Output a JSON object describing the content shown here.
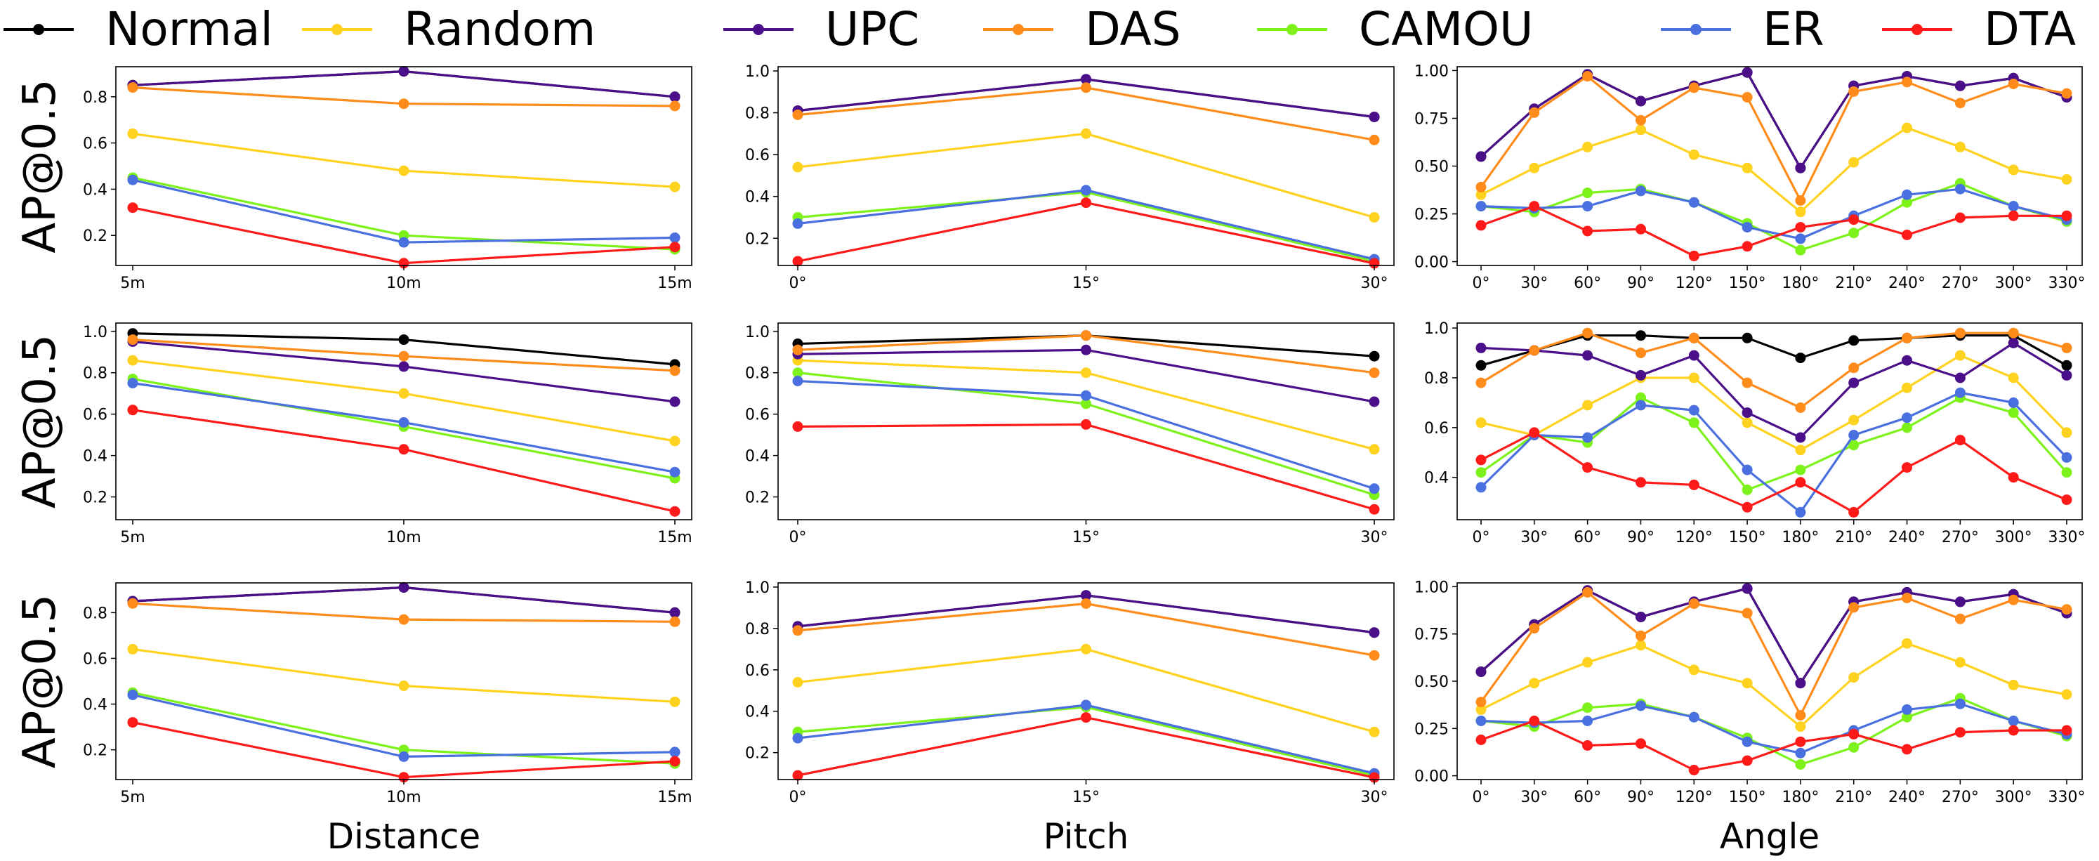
{
  "legend": [
    {
      "name": "Normal",
      "color": "#000000"
    },
    {
      "name": "Random",
      "color": "#FFD21F"
    },
    {
      "name": "UPC",
      "color": "#4B0F8A"
    },
    {
      "name": "DAS",
      "color": "#FF8C1A"
    },
    {
      "name": "CAMOU",
      "color": "#7CF21A"
    },
    {
      "name": "ER",
      "color": "#4A70E0"
    },
    {
      "name": "DTA",
      "color": "#FF1A1A"
    }
  ],
  "row_labels": [
    "AP@0.5",
    "AP@0.5",
    "AP@0.5"
  ],
  "column_labels": [
    "Distance",
    "Pitch",
    "Angle"
  ],
  "chart_data": [
    {
      "type": "line",
      "row": 0,
      "col": 0,
      "categories": [
        "5m",
        "10m",
        "15m"
      ],
      "ylim": [
        0.07,
        0.93
      ],
      "yticks": [
        "0.2",
        "0.4",
        "0.6",
        "0.8"
      ],
      "series": [
        {
          "name": "Normal",
          "values": [
            0.85,
            0.91,
            0.8
          ]
        },
        {
          "name": "UPC",
          "values": [
            0.85,
            0.91,
            0.8
          ]
        },
        {
          "name": "DAS",
          "values": [
            0.84,
            0.77,
            0.76
          ]
        },
        {
          "name": "Random",
          "values": [
            0.64,
            0.48,
            0.41
          ]
        },
        {
          "name": "CAMOU",
          "values": [
            0.45,
            0.2,
            0.14
          ]
        },
        {
          "name": "ER",
          "values": [
            0.44,
            0.17,
            0.19
          ]
        },
        {
          "name": "DTA",
          "values": [
            0.32,
            0.08,
            0.15
          ]
        }
      ]
    },
    {
      "type": "line",
      "row": 0,
      "col": 1,
      "categories": [
        "0°",
        "15°",
        "30°"
      ],
      "ylim": [
        0.07,
        1.02
      ],
      "yticks": [
        "0.2",
        "0.4",
        "0.6",
        "0.8",
        "1.0"
      ],
      "series": [
        {
          "name": "Normal",
          "values": [
            0.81,
            0.96,
            0.78
          ]
        },
        {
          "name": "UPC",
          "values": [
            0.81,
            0.96,
            0.78
          ]
        },
        {
          "name": "DAS",
          "values": [
            0.79,
            0.92,
            0.67
          ]
        },
        {
          "name": "Random",
          "values": [
            0.54,
            0.7,
            0.3
          ]
        },
        {
          "name": "CAMOU",
          "values": [
            0.3,
            0.42,
            0.09
          ]
        },
        {
          "name": "ER",
          "values": [
            0.27,
            0.43,
            0.1
          ]
        },
        {
          "name": "DTA",
          "values": [
            0.09,
            0.37,
            0.08
          ]
        }
      ]
    },
    {
      "type": "line",
      "row": 0,
      "col": 2,
      "categories": [
        "0°",
        "30°",
        "60°",
        "90°",
        "120°",
        "150°",
        "180°",
        "210°",
        "240°",
        "270°",
        "300°",
        "330°"
      ],
      "ylim": [
        -0.02,
        1.02
      ],
      "yticks": [
        "0.00",
        "0.25",
        "0.50",
        "0.75",
        "1.00"
      ],
      "series": [
        {
          "name": "Normal",
          "values": [
            0.55,
            0.8,
            0.98,
            0.84,
            0.92,
            0.99,
            0.49,
            0.92,
            0.97,
            0.92,
            0.96,
            0.86
          ]
        },
        {
          "name": "UPC",
          "values": [
            0.55,
            0.8,
            0.98,
            0.84,
            0.92,
            0.99,
            0.49,
            0.92,
            0.97,
            0.92,
            0.96,
            0.86
          ]
        },
        {
          "name": "DAS",
          "values": [
            0.39,
            0.78,
            0.97,
            0.74,
            0.91,
            0.86,
            0.32,
            0.89,
            0.94,
            0.83,
            0.93,
            0.88
          ]
        },
        {
          "name": "Random",
          "values": [
            0.35,
            0.49,
            0.6,
            0.69,
            0.56,
            0.49,
            0.26,
            0.52,
            0.7,
            0.6,
            0.48,
            0.43
          ]
        },
        {
          "name": "CAMOU",
          "values": [
            0.29,
            0.26,
            0.36,
            0.38,
            0.31,
            0.2,
            0.06,
            0.15,
            0.31,
            0.41,
            0.29,
            0.21
          ]
        },
        {
          "name": "ER",
          "values": [
            0.29,
            0.28,
            0.29,
            0.37,
            0.31,
            0.18,
            0.12,
            0.24,
            0.35,
            0.38,
            0.29,
            0.22
          ]
        },
        {
          "name": "DTA",
          "values": [
            0.19,
            0.29,
            0.16,
            0.17,
            0.03,
            0.08,
            0.18,
            0.22,
            0.14,
            0.23,
            0.24,
            0.24
          ]
        }
      ]
    },
    {
      "type": "line",
      "row": 1,
      "col": 0,
      "categories": [
        "5m",
        "10m",
        "15m"
      ],
      "ylim": [
        0.09,
        1.04
      ],
      "yticks": [
        "0.2",
        "0.4",
        "0.6",
        "0.8",
        "1.0"
      ],
      "series": [
        {
          "name": "Normal",
          "values": [
            0.99,
            0.96,
            0.84
          ]
        },
        {
          "name": "DAS",
          "values": [
            0.96,
            0.88,
            0.81
          ]
        },
        {
          "name": "UPC",
          "values": [
            0.95,
            0.83,
            0.66
          ]
        },
        {
          "name": "Random",
          "values": [
            0.86,
            0.7,
            0.47
          ]
        },
        {
          "name": "CAMOU",
          "values": [
            0.77,
            0.54,
            0.29
          ]
        },
        {
          "name": "ER",
          "values": [
            0.75,
            0.56,
            0.32
          ]
        },
        {
          "name": "DTA",
          "values": [
            0.62,
            0.43,
            0.13
          ]
        }
      ]
    },
    {
      "type": "line",
      "row": 1,
      "col": 1,
      "categories": [
        "0°",
        "15°",
        "30°"
      ],
      "ylim": [
        0.09,
        1.04
      ],
      "yticks": [
        "0.2",
        "0.4",
        "0.6",
        "0.8",
        "1.0"
      ],
      "series": [
        {
          "name": "Normal",
          "values": [
            0.94,
            0.98,
            0.88
          ]
        },
        {
          "name": "DAS",
          "values": [
            0.91,
            0.98,
            0.8
          ]
        },
        {
          "name": "UPC",
          "values": [
            0.89,
            0.91,
            0.66
          ]
        },
        {
          "name": "Random",
          "values": [
            0.86,
            0.8,
            0.43
          ]
        },
        {
          "name": "CAMOU",
          "values": [
            0.8,
            0.65,
            0.21
          ]
        },
        {
          "name": "ER",
          "values": [
            0.76,
            0.69,
            0.24
          ]
        },
        {
          "name": "DTA",
          "values": [
            0.54,
            0.55,
            0.14
          ]
        }
      ]
    },
    {
      "type": "line",
      "row": 1,
      "col": 2,
      "categories": [
        "0°",
        "30°",
        "60°",
        "90°",
        "120°",
        "150°",
        "180°",
        "210°",
        "240°",
        "270°",
        "300°",
        "330°"
      ],
      "ylim": [
        0.23,
        1.02
      ],
      "yticks": [
        "0.4",
        "0.6",
        "0.8",
        "1.0"
      ],
      "series": [
        {
          "name": "Normal",
          "values": [
            0.85,
            0.91,
            0.97,
            0.97,
            0.96,
            0.96,
            0.88,
            0.95,
            0.96,
            0.97,
            0.97,
            0.85
          ]
        },
        {
          "name": "UPC",
          "values": [
            0.92,
            0.91,
            0.89,
            0.81,
            0.89,
            0.66,
            0.56,
            0.78,
            0.87,
            0.8,
            0.94,
            0.81
          ]
        },
        {
          "name": "DAS",
          "values": [
            0.78,
            0.91,
            0.98,
            0.9,
            0.96,
            0.78,
            0.68,
            0.84,
            0.96,
            0.98,
            0.98,
            0.92
          ]
        },
        {
          "name": "Random",
          "values": [
            0.62,
            0.57,
            0.69,
            0.8,
            0.8,
            0.62,
            0.51,
            0.63,
            0.76,
            0.89,
            0.8,
            0.58
          ]
        },
        {
          "name": "CAMOU",
          "values": [
            0.42,
            0.57,
            0.54,
            0.72,
            0.62,
            0.35,
            0.43,
            0.53,
            0.6,
            0.72,
            0.66,
            0.42
          ]
        },
        {
          "name": "ER",
          "values": [
            0.36,
            0.57,
            0.56,
            0.69,
            0.67,
            0.43,
            0.26,
            0.57,
            0.64,
            0.74,
            0.7,
            0.48
          ]
        },
        {
          "name": "DTA",
          "values": [
            0.47,
            0.58,
            0.44,
            0.38,
            0.37,
            0.28,
            0.38,
            0.26,
            0.44,
            0.55,
            0.4,
            0.31
          ]
        }
      ]
    },
    {
      "type": "line",
      "row": 2,
      "col": 0,
      "categories": [
        "5m",
        "10m",
        "15m"
      ],
      "ylim": [
        0.07,
        0.93
      ],
      "yticks": [
        "0.2",
        "0.4",
        "0.6",
        "0.8"
      ],
      "series": [
        {
          "name": "Normal",
          "values": [
            0.85,
            0.91,
            0.8
          ]
        },
        {
          "name": "UPC",
          "values": [
            0.85,
            0.91,
            0.8
          ]
        },
        {
          "name": "DAS",
          "values": [
            0.84,
            0.77,
            0.76
          ]
        },
        {
          "name": "Random",
          "values": [
            0.64,
            0.48,
            0.41
          ]
        },
        {
          "name": "CAMOU",
          "values": [
            0.45,
            0.2,
            0.14
          ]
        },
        {
          "name": "ER",
          "values": [
            0.44,
            0.17,
            0.19
          ]
        },
        {
          "name": "DTA",
          "values": [
            0.32,
            0.08,
            0.15
          ]
        }
      ]
    },
    {
      "type": "line",
      "row": 2,
      "col": 1,
      "categories": [
        "0°",
        "15°",
        "30°"
      ],
      "ylim": [
        0.07,
        1.02
      ],
      "yticks": [
        "0.2",
        "0.4",
        "0.6",
        "0.8",
        "1.0"
      ],
      "series": [
        {
          "name": "Normal",
          "values": [
            0.81,
            0.96,
            0.78
          ]
        },
        {
          "name": "UPC",
          "values": [
            0.81,
            0.96,
            0.78
          ]
        },
        {
          "name": "DAS",
          "values": [
            0.79,
            0.92,
            0.67
          ]
        },
        {
          "name": "Random",
          "values": [
            0.54,
            0.7,
            0.3
          ]
        },
        {
          "name": "CAMOU",
          "values": [
            0.3,
            0.42,
            0.09
          ]
        },
        {
          "name": "ER",
          "values": [
            0.27,
            0.43,
            0.1
          ]
        },
        {
          "name": "DTA",
          "values": [
            0.09,
            0.37,
            0.08
          ]
        }
      ]
    },
    {
      "type": "line",
      "row": 2,
      "col": 2,
      "categories": [
        "0°",
        "30°",
        "60°",
        "90°",
        "120°",
        "150°",
        "180°",
        "210°",
        "240°",
        "270°",
        "300°",
        "330°"
      ],
      "ylim": [
        -0.02,
        1.02
      ],
      "yticks": [
        "0.00",
        "0.25",
        "0.50",
        "0.75",
        "1.00"
      ],
      "series": [
        {
          "name": "Normal",
          "values": [
            0.55,
            0.8,
            0.98,
            0.84,
            0.92,
            0.99,
            0.49,
            0.92,
            0.97,
            0.92,
            0.96,
            0.86
          ]
        },
        {
          "name": "UPC",
          "values": [
            0.55,
            0.8,
            0.98,
            0.84,
            0.92,
            0.99,
            0.49,
            0.92,
            0.97,
            0.92,
            0.96,
            0.86
          ]
        },
        {
          "name": "DAS",
          "values": [
            0.39,
            0.78,
            0.97,
            0.74,
            0.91,
            0.86,
            0.32,
            0.89,
            0.94,
            0.83,
            0.93,
            0.88
          ]
        },
        {
          "name": "Random",
          "values": [
            0.35,
            0.49,
            0.6,
            0.69,
            0.56,
            0.49,
            0.26,
            0.52,
            0.7,
            0.6,
            0.48,
            0.43
          ]
        },
        {
          "name": "CAMOU",
          "values": [
            0.29,
            0.26,
            0.36,
            0.38,
            0.31,
            0.2,
            0.06,
            0.15,
            0.31,
            0.41,
            0.29,
            0.21
          ]
        },
        {
          "name": "ER",
          "values": [
            0.29,
            0.28,
            0.29,
            0.37,
            0.31,
            0.18,
            0.12,
            0.24,
            0.35,
            0.38,
            0.29,
            0.22
          ]
        },
        {
          "name": "DTA",
          "values": [
            0.19,
            0.29,
            0.16,
            0.17,
            0.03,
            0.08,
            0.18,
            0.22,
            0.14,
            0.23,
            0.24,
            0.24
          ]
        }
      ]
    }
  ]
}
